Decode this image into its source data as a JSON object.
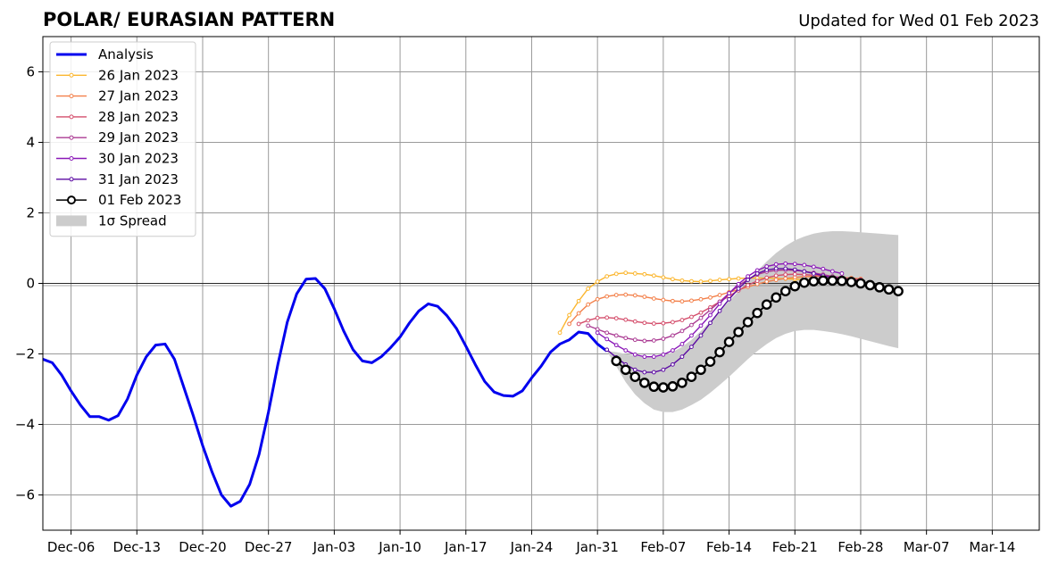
{
  "chart_data": {
    "type": "line",
    "title": "POLAR/ EURASIAN  PATTERN",
    "updated": "Updated for Wed 01 Feb 2023",
    "xlabel": "",
    "ylabel": "",
    "x_start_date": "2022-12-03",
    "xlim": [
      "2022-12-03",
      "2023-03-19"
    ],
    "ylim": [
      -7,
      7
    ],
    "y_ticks": [
      {
        "value": -6,
        "label": "−6"
      },
      {
        "value": -4,
        "label": "−4"
      },
      {
        "value": -2,
        "label": "−2"
      },
      {
        "value": 0,
        "label": "0"
      },
      {
        "value": 2,
        "label": "2"
      },
      {
        "value": 4,
        "label": "4"
      },
      {
        "value": 6,
        "label": "6"
      }
    ],
    "x_ticks": [
      {
        "date": "2022-12-06",
        "label": "Dec-06"
      },
      {
        "date": "2022-12-13",
        "label": "Dec-13"
      },
      {
        "date": "2022-12-20",
        "label": "Dec-20"
      },
      {
        "date": "2022-12-27",
        "label": "Dec-27"
      },
      {
        "date": "2023-01-03",
        "label": "Jan-03"
      },
      {
        "date": "2023-01-10",
        "label": "Jan-10"
      },
      {
        "date": "2023-01-17",
        "label": "Jan-17"
      },
      {
        "date": "2023-01-24",
        "label": "Jan-24"
      },
      {
        "date": "2023-01-31",
        "label": "Jan-31"
      },
      {
        "date": "2023-02-07",
        "label": "Feb-07"
      },
      {
        "date": "2023-02-14",
        "label": "Feb-14"
      },
      {
        "date": "2023-02-21",
        "label": "Feb-21"
      },
      {
        "date": "2023-02-28",
        "label": "Feb-28"
      },
      {
        "date": "2023-03-07",
        "label": "Mar-07"
      },
      {
        "date": "2023-03-14",
        "label": "Mar-14"
      }
    ],
    "grid": true,
    "legend_position": "top-left",
    "analysis": {
      "name": "Analysis",
      "color": "#0000ee",
      "start_date": "2022-12-03",
      "values": [
        -2.15,
        -2.25,
        -2.6,
        -3.05,
        -3.45,
        -3.78,
        -3.78,
        -3.88,
        -3.75,
        -3.28,
        -2.6,
        -2.08,
        -1.75,
        -1.72,
        -2.15,
        -2.95,
        -3.75,
        -4.6,
        -5.35,
        -6.0,
        -6.32,
        -6.18,
        -5.7,
        -4.85,
        -3.65,
        -2.3,
        -1.1,
        -0.3,
        0.12,
        0.14,
        -0.15,
        -0.72,
        -1.35,
        -1.88,
        -2.2,
        -2.25,
        -2.08,
        -1.82,
        -1.52,
        -1.12,
        -0.78,
        -0.58,
        -0.65,
        -0.92,
        -1.28,
        -1.78,
        -2.3,
        -2.78,
        -3.08,
        -3.18,
        -3.2,
        -3.05,
        -2.68,
        -2.35,
        -1.95,
        -1.72,
        -1.6,
        -1.38,
        -1.42,
        -1.72,
        -1.92
      ]
    },
    "forecasts": [
      {
        "name": "26 Jan 2023",
        "color": "#fbb62f",
        "start_date": "2023-01-27",
        "values": [
          -1.4,
          -0.9,
          -0.5,
          -0.15,
          0.05,
          0.2,
          0.27,
          0.3,
          0.28,
          0.26,
          0.22,
          0.17,
          0.12,
          0.08,
          0.06,
          0.05,
          0.07,
          0.1,
          0.12,
          0.14,
          0.15,
          0.15,
          0.15,
          0.14,
          0.13,
          0.12,
          0.11,
          0.1,
          0.1,
          0.1,
          0.1,
          0.1,
          0.1
        ]
      },
      {
        "name": "27 Jan 2023",
        "color": "#f3804a",
        "start_date": "2023-01-28",
        "values": [
          -1.15,
          -0.85,
          -0.6,
          -0.45,
          -0.37,
          -0.33,
          -0.32,
          -0.34,
          -0.38,
          -0.43,
          -0.47,
          -0.5,
          -0.51,
          -0.49,
          -0.45,
          -0.4,
          -0.33,
          -0.25,
          -0.18,
          -0.1,
          -0.02,
          0.05,
          0.1,
          0.14,
          0.17,
          0.19,
          0.2,
          0.2,
          0.19,
          0.17,
          0.15,
          0.13
        ]
      },
      {
        "name": "28 Jan 2023",
        "color": "#d44d6b",
        "start_date": "2023-01-29",
        "values": [
          -1.15,
          -1.05,
          -0.98,
          -0.97,
          -0.99,
          -1.03,
          -1.08,
          -1.12,
          -1.14,
          -1.13,
          -1.1,
          -1.04,
          -0.95,
          -0.83,
          -0.68,
          -0.52,
          -0.36,
          -0.2,
          -0.05,
          0.07,
          0.16,
          0.22,
          0.25,
          0.26,
          0.25,
          0.23,
          0.2,
          0.17,
          0.14,
          0.12,
          0.1
        ]
      },
      {
        "name": "29 Jan 2023",
        "color": "#ab3b93",
        "start_date": "2023-01-30",
        "values": [
          -1.2,
          -1.3,
          -1.4,
          -1.48,
          -1.55,
          -1.6,
          -1.63,
          -1.62,
          -1.57,
          -1.48,
          -1.35,
          -1.18,
          -0.98,
          -0.75,
          -0.52,
          -0.28,
          -0.07,
          0.12,
          0.25,
          0.33,
          0.37,
          0.38,
          0.37,
          0.34,
          0.3,
          0.25,
          0.2,
          0.16,
          0.12,
          0.1
        ]
      },
      {
        "name": "30 Jan 2023",
        "color": "#8a18b8",
        "start_date": "2023-01-31",
        "values": [
          -1.4,
          -1.58,
          -1.75,
          -1.9,
          -2.02,
          -2.08,
          -2.08,
          -2.02,
          -1.9,
          -1.72,
          -1.48,
          -1.2,
          -0.9,
          -0.58,
          -0.28,
          -0.02,
          0.2,
          0.37,
          0.48,
          0.54,
          0.56,
          0.55,
          0.52,
          0.47,
          0.41,
          0.34,
          0.28
        ]
      },
      {
        "name": "31 Jan 2023",
        "color": "#5c0ba3",
        "start_date": "2023-02-01",
        "values": [
          -1.88,
          -2.1,
          -2.3,
          -2.45,
          -2.52,
          -2.52,
          -2.45,
          -2.3,
          -2.08,
          -1.8,
          -1.48,
          -1.12,
          -0.78,
          -0.45,
          -0.15,
          0.1,
          0.28,
          0.38,
          0.42,
          0.42,
          0.39,
          0.34,
          0.28,
          0.22,
          0.16,
          0.12
        ]
      }
    ],
    "current_forecast": {
      "name": "01 Feb 2023",
      "color": "#000000",
      "start_date": "2023-02-02",
      "values": [
        -2.2,
        -2.45,
        -2.65,
        -2.82,
        -2.93,
        -2.95,
        -2.92,
        -2.82,
        -2.65,
        -2.45,
        -2.22,
        -1.95,
        -1.66,
        -1.38,
        -1.1,
        -0.84,
        -0.6,
        -0.4,
        -0.22,
        -0.08,
        0.02,
        0.06,
        0.08,
        0.08,
        0.07,
        0.04,
        0.0,
        -0.05,
        -0.11,
        -0.17,
        -0.22
      ]
    },
    "spread": {
      "name": "1σ Spread",
      "color": "#cccccc",
      "start_date": "2023-02-01",
      "upper": [
        -1.92,
        -1.95,
        -2.0,
        -2.05,
        -2.1,
        -2.1,
        -2.05,
        -1.95,
        -1.8,
        -1.6,
        -1.35,
        -1.08,
        -0.8,
        -0.5,
        -0.22,
        0.08,
        0.35,
        0.62,
        0.86,
        1.06,
        1.22,
        1.33,
        1.41,
        1.46,
        1.48,
        1.48,
        1.47,
        1.45,
        1.43,
        1.41,
        1.39,
        1.37
      ],
      "lower": [
        -1.92,
        -2.35,
        -2.8,
        -3.15,
        -3.4,
        -3.58,
        -3.65,
        -3.65,
        -3.58,
        -3.45,
        -3.3,
        -3.1,
        -2.88,
        -2.65,
        -2.4,
        -2.15,
        -1.92,
        -1.72,
        -1.55,
        -1.43,
        -1.35,
        -1.32,
        -1.32,
        -1.35,
        -1.39,
        -1.44,
        -1.5,
        -1.57,
        -1.64,
        -1.71,
        -1.78,
        -1.84
      ]
    }
  }
}
